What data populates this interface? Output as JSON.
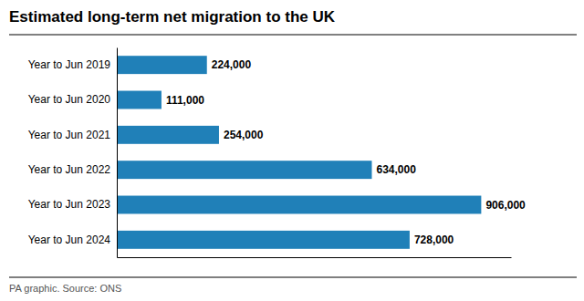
{
  "chart_data": {
    "type": "bar",
    "orientation": "horizontal",
    "title": "Estimated long-term net migration to the UK",
    "categories": [
      "Year to Jun 2019",
      "Year to Jun 2020",
      "Year to Jun 2021",
      "Year to Jun 2022",
      "Year to Jun 2023",
      "Year to Jun 2024"
    ],
    "values": [
      224000,
      111000,
      254000,
      634000,
      906000,
      728000
    ],
    "value_labels": [
      "224,000",
      "111,000",
      "254,000",
      "634,000",
      "906,000",
      "728,000"
    ],
    "data_labels": true,
    "color": "#2080B8",
    "xlim": [
      0,
      980000
    ],
    "tick_labels": "y",
    "grid": false,
    "annotations": [
      "PA graphic. Source: ONS"
    ]
  }
}
